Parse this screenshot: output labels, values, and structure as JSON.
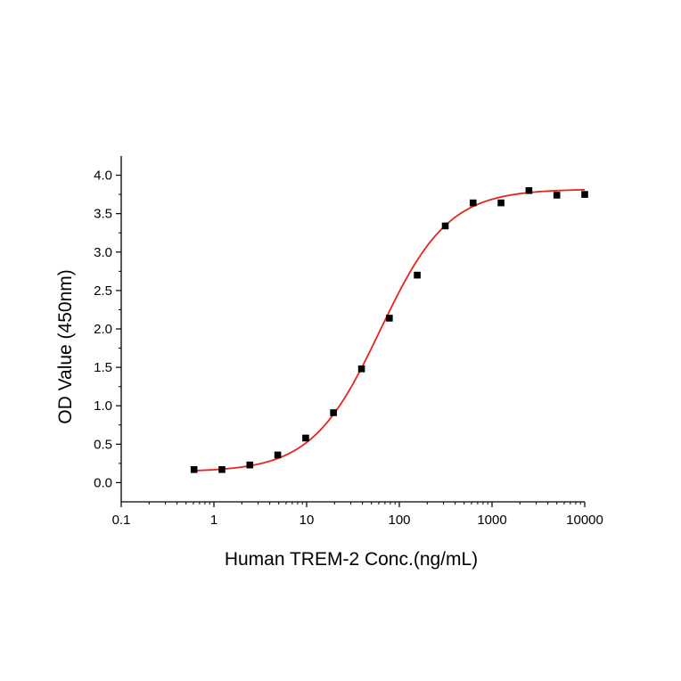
{
  "chart_data": {
    "type": "scatter",
    "title": "",
    "xlabel": "Human TREM-2 Conc.(ng/mL)",
    "ylabel": "OD Value (450nm)",
    "x_scale": "log",
    "xlim": [
      0.1,
      10000
    ],
    "ylim": [
      -0.25,
      4.25
    ],
    "x_ticks": [
      0.1,
      1,
      10,
      100,
      1000,
      10000
    ],
    "x_tick_labels": [
      "0.1",
      "1",
      "10",
      "100",
      "1000",
      "10000"
    ],
    "y_ticks": [
      0.0,
      0.5,
      1.0,
      1.5,
      2.0,
      2.5,
      3.0,
      3.5,
      4.0
    ],
    "y_tick_labels": [
      "0.0",
      "0.5",
      "1.0",
      "1.5",
      "2.0",
      "2.5",
      "3.0",
      "3.5",
      "4.0"
    ],
    "grid": false,
    "legend": "none",
    "series": [
      {
        "marker": "square",
        "color": "#000000",
        "points": [
          {
            "x": 0.61,
            "y": 0.17
          },
          {
            "x": 1.22,
            "y": 0.17
          },
          {
            "x": 2.44,
            "y": 0.23
          },
          {
            "x": 4.88,
            "y": 0.36
          },
          {
            "x": 9.77,
            "y": 0.58
          },
          {
            "x": 19.5,
            "y": 0.91
          },
          {
            "x": 39.1,
            "y": 1.48
          },
          {
            "x": 78.1,
            "y": 2.14
          },
          {
            "x": 156,
            "y": 2.7
          },
          {
            "x": 313,
            "y": 3.34
          },
          {
            "x": 625,
            "y": 3.64
          },
          {
            "x": 1250,
            "y": 3.64
          },
          {
            "x": 2500,
            "y": 3.8
          },
          {
            "x": 5000,
            "y": 3.74
          },
          {
            "x": 10000,
            "y": 3.75
          }
        ]
      }
    ],
    "fit_curve": {
      "model": "4PL",
      "color": "#e8231c",
      "bottom": 0.14,
      "top": 3.82,
      "ec50": 62,
      "hill": 1.18,
      "x_range": [
        0.61,
        10000
      ]
    }
  }
}
